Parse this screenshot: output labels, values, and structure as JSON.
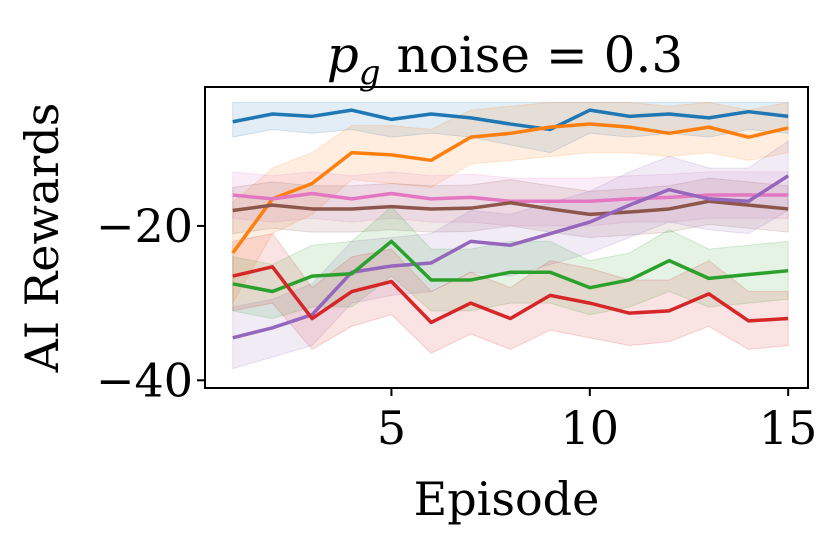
{
  "chart_data": {
    "type": "line",
    "title": {
      "var": "p",
      "sub": "g",
      "rest": " noise = 0.3"
    },
    "xlabel": "Episode",
    "ylabel": "AI Rewards",
    "xlim": [
      0.3,
      15.5
    ],
    "ylim": [
      -41,
      -2
    ],
    "x_ticks": [
      5,
      10,
      15
    ],
    "x_tick_labels": [
      "5",
      "10",
      "15"
    ],
    "y_ticks": [
      -20,
      -40
    ],
    "y_tick_labels": [
      "−20",
      "−40"
    ],
    "x": [
      1,
      2,
      3,
      4,
      5,
      6,
      7,
      8,
      9,
      10,
      11,
      12,
      13,
      14,
      15
    ],
    "series": [
      {
        "name": "blue",
        "color": "#1f77b4",
        "values": [
          -6.5,
          -5.5,
          -5.8,
          -5.0,
          -6.2,
          -5.5,
          -6.0,
          -6.8,
          -7.5,
          -5.0,
          -5.8,
          -5.5,
          -6.0,
          -5.2,
          -5.8
        ],
        "lower": [
          -8.5,
          -7.5,
          -8.0,
          -7.5,
          -8.5,
          -8.0,
          -8.5,
          -9.5,
          -10.5,
          -8.0,
          -8.5,
          -8.0,
          -8.5,
          -7.5,
          -8.0
        ],
        "upper": [
          -4.0,
          -4.0,
          -4.0,
          -4.0,
          -4.0,
          -4.0,
          -4.0,
          -4.0,
          -4.0,
          -4.0,
          -4.0,
          -4.0,
          -4.0,
          -4.0,
          -4.0
        ]
      },
      {
        "name": "orange",
        "color": "#ff7f0e",
        "values": [
          -23.5,
          -16.5,
          -14.5,
          -10.5,
          -10.8,
          -11.5,
          -8.5,
          -8.0,
          -7.2,
          -6.8,
          -7.2,
          -8.0,
          -7.2,
          -8.5,
          -7.3
        ],
        "lower": [
          -30.0,
          -21.0,
          -18.5,
          -14.0,
          -14.5,
          -15.0,
          -12.0,
          -11.5,
          -11.0,
          -10.5,
          -10.5,
          -11.0,
          -10.5,
          -11.5,
          -10.5
        ],
        "upper": [
          -17.0,
          -12.5,
          -10.5,
          -7.0,
          -7.0,
          -7.5,
          -5.0,
          -4.5,
          -4.0,
          -4.0,
          -4.0,
          -4.5,
          -4.0,
          -5.0,
          -4.0
        ]
      },
      {
        "name": "pink",
        "color": "#e377c2",
        "values": [
          -16.0,
          -16.5,
          -15.8,
          -16.5,
          -15.8,
          -16.5,
          -16.3,
          -16.8,
          -16.8,
          -16.8,
          -16.5,
          -16.3,
          -16.0,
          -16.0,
          -16.0
        ],
        "lower": [
          -19.0,
          -19.5,
          -19.0,
          -19.5,
          -19.0,
          -19.5,
          -19.5,
          -20.0,
          -20.0,
          -20.0,
          -19.5,
          -19.5,
          -19.0,
          -19.0,
          -19.0
        ],
        "upper": [
          -13.0,
          -13.5,
          -13.0,
          -13.5,
          -13.0,
          -13.5,
          -13.3,
          -13.8,
          -13.8,
          -13.8,
          -13.5,
          -13.3,
          -13.0,
          -13.0,
          -13.0
        ]
      },
      {
        "name": "brown",
        "color": "#8c564b",
        "values": [
          -18.0,
          -17.3,
          -17.8,
          -17.8,
          -17.5,
          -17.8,
          -17.7,
          -17.0,
          -17.8,
          -18.5,
          -18.2,
          -17.8,
          -16.8,
          -17.3,
          -17.8
        ],
        "lower": [
          -21.0,
          -20.3,
          -20.8,
          -20.8,
          -20.5,
          -20.8,
          -20.7,
          -20.0,
          -20.8,
          -21.5,
          -21.2,
          -20.8,
          -19.8,
          -20.3,
          -20.8
        ],
        "upper": [
          -15.0,
          -14.3,
          -14.8,
          -14.8,
          -14.5,
          -14.8,
          -14.7,
          -14.0,
          -14.8,
          -15.5,
          -15.2,
          -14.8,
          -13.8,
          -14.3,
          -14.8
        ]
      },
      {
        "name": "purple",
        "color": "#9467bd",
        "values": [
          -34.5,
          -33.2,
          -31.5,
          -26.0,
          -25.2,
          -24.8,
          -22.0,
          -22.5,
          -21.0,
          -19.5,
          -17.3,
          -15.3,
          -16.5,
          -16.8,
          -13.5
        ],
        "lower": [
          -38.5,
          -37.0,
          -35.5,
          -30.0,
          -29.0,
          -28.5,
          -26.0,
          -26.5,
          -25.0,
          -23.5,
          -21.5,
          -19.5,
          -20.5,
          -21.0,
          -18.0
        ],
        "upper": [
          -30.5,
          -29.5,
          -27.5,
          -22.0,
          -21.5,
          -21.0,
          -18.0,
          -18.5,
          -17.0,
          -15.5,
          -13.0,
          -11.0,
          -12.5,
          -12.5,
          -9.0
        ]
      },
      {
        "name": "green",
        "color": "#2ca02c",
        "values": [
          -27.5,
          -28.5,
          -26.5,
          -26.2,
          -22.0,
          -27.0,
          -27.0,
          -26.0,
          -26.0,
          -28.0,
          -27.0,
          -24.5,
          -26.8,
          -26.3,
          -25.8
        ],
        "lower": [
          -31.0,
          -32.0,
          -30.5,
          -30.5,
          -26.5,
          -31.0,
          -31.0,
          -30.0,
          -30.0,
          -31.5,
          -30.5,
          -28.5,
          -30.5,
          -30.0,
          -29.5
        ],
        "upper": [
          -24.0,
          -25.0,
          -22.5,
          -22.0,
          -17.5,
          -23.0,
          -23.0,
          -22.0,
          -22.0,
          -24.5,
          -23.5,
          -20.5,
          -23.0,
          -22.5,
          -22.0
        ]
      },
      {
        "name": "red",
        "color": "#d62728",
        "values": [
          -26.5,
          -25.3,
          -32.0,
          -28.5,
          -27.2,
          -32.5,
          -30.0,
          -32.0,
          -29.0,
          -30.0,
          -31.3,
          -31.0,
          -28.8,
          -32.3,
          -32.0
        ],
        "lower": [
          -31.0,
          -30.0,
          -36.0,
          -33.0,
          -31.5,
          -36.5,
          -34.0,
          -36.0,
          -33.5,
          -34.5,
          -35.5,
          -35.0,
          -33.0,
          -36.0,
          -35.5
        ],
        "upper": [
          -22.0,
          -21.0,
          -28.0,
          -24.0,
          -23.0,
          -28.5,
          -26.0,
          -28.0,
          -24.5,
          -25.5,
          -27.0,
          -27.0,
          -24.5,
          -28.5,
          -28.5
        ]
      }
    ]
  }
}
